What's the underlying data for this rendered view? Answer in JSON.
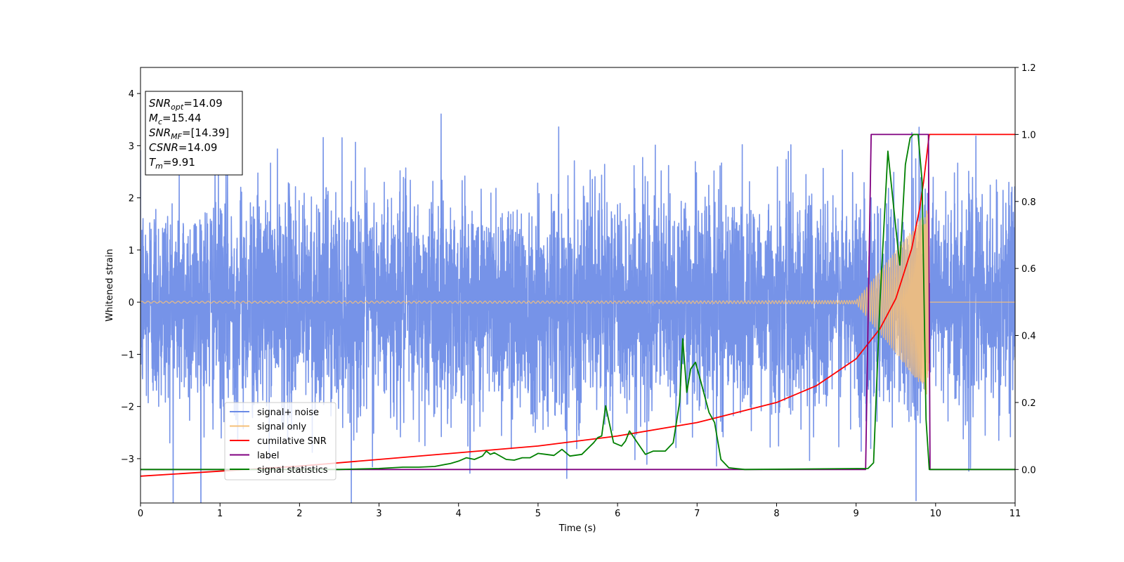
{
  "chart_data": {
    "type": "line",
    "title": "",
    "xlabel": "Time (s)",
    "ylabel": "Whitened strain",
    "xlim": [
      0,
      11
    ],
    "ylim_left": [
      -3.85,
      4.5
    ],
    "ylim_right": [
      -0.1,
      1.2
    ],
    "x_ticks": [
      "0",
      "1",
      "2",
      "3",
      "4",
      "5",
      "6",
      "7",
      "8",
      "9",
      "10",
      "11"
    ],
    "y_ticks_left": [
      "−3",
      "−2",
      "−1",
      "0",
      "1",
      "2",
      "3",
      "4"
    ],
    "y_ticks_right": [
      "0.0",
      "0.2",
      "0.4",
      "0.6",
      "0.8",
      "1.0",
      "1.2"
    ],
    "grid": false,
    "legend_position": "lower-left",
    "info_box": [
      {
        "base": "SNR",
        "sub": "opt",
        "value": "=14.09"
      },
      {
        "base": "M",
        "sub": "c",
        "value": "=15.44"
      },
      {
        "base": "SNR",
        "sub": "MF",
        "value": "=[14.39]"
      },
      {
        "base": "CSNR",
        "sub": "",
        "value": "=14.09"
      },
      {
        "base": "T",
        "sub": "m",
        "value": "=9.91"
      }
    ],
    "series": [
      {
        "name": "signal+ noise",
        "color": "#6a8ae6",
        "axis": "left",
        "description_values": {
          "std": 1.0,
          "t_range": [
            0,
            11
          ]
        }
      },
      {
        "name": "signal only",
        "color": "#f5c07a",
        "axis": "left",
        "chirp": {
          "t_start": 0,
          "t_merge": 9.91,
          "amp_start": 0.03,
          "amp_merge": 2.3,
          "ringdown_end": 9.92
        }
      },
      {
        "name": "cumilative SNR",
        "color": "#ff0000",
        "axis": "right",
        "points": [
          [
            0,
            -0.02
          ],
          [
            1,
            -0.005
          ],
          [
            2,
            0.01
          ],
          [
            3,
            0.03
          ],
          [
            4,
            0.05
          ],
          [
            5,
            0.07
          ],
          [
            6,
            0.1
          ],
          [
            7,
            0.14
          ],
          [
            8,
            0.2
          ],
          [
            8.5,
            0.25
          ],
          [
            9,
            0.33
          ],
          [
            9.3,
            0.42
          ],
          [
            9.5,
            0.51
          ],
          [
            9.7,
            0.66
          ],
          [
            9.8,
            0.78
          ],
          [
            9.85,
            0.86
          ],
          [
            9.9,
            0.96
          ],
          [
            9.92,
            1.0
          ],
          [
            11,
            1.0
          ]
        ]
      },
      {
        "name": "label",
        "color": "#800080",
        "axis": "right",
        "points": [
          [
            0,
            0.0
          ],
          [
            9.12,
            0.0
          ],
          [
            9.19,
            1.0
          ],
          [
            9.91,
            1.0
          ],
          [
            9.93,
            0.0
          ],
          [
            11,
            0.0
          ]
        ]
      },
      {
        "name": "signal statistics",
        "color": "#008000",
        "axis": "right",
        "points": [
          [
            0,
            0.0
          ],
          [
            2.5,
            0.0
          ],
          [
            3.0,
            0.003
          ],
          [
            3.3,
            0.007
          ],
          [
            3.5,
            0.007
          ],
          [
            3.7,
            0.009
          ],
          [
            3.9,
            0.018
          ],
          [
            4.0,
            0.025
          ],
          [
            4.1,
            0.035
          ],
          [
            4.2,
            0.03
          ],
          [
            4.3,
            0.04
          ],
          [
            4.35,
            0.055
          ],
          [
            4.4,
            0.045
          ],
          [
            4.45,
            0.05
          ],
          [
            4.6,
            0.03
          ],
          [
            4.7,
            0.028
          ],
          [
            4.8,
            0.035
          ],
          [
            4.9,
            0.035
          ],
          [
            5.0,
            0.048
          ],
          [
            5.1,
            0.045
          ],
          [
            5.2,
            0.042
          ],
          [
            5.3,
            0.06
          ],
          [
            5.4,
            0.04
          ],
          [
            5.55,
            0.045
          ],
          [
            5.7,
            0.08
          ],
          [
            5.75,
            0.095
          ],
          [
            5.8,
            0.1
          ],
          [
            5.85,
            0.19
          ],
          [
            5.95,
            0.08
          ],
          [
            6.05,
            0.07
          ],
          [
            6.1,
            0.085
          ],
          [
            6.15,
            0.115
          ],
          [
            6.25,
            0.08
          ],
          [
            6.35,
            0.045
          ],
          [
            6.45,
            0.055
          ],
          [
            6.6,
            0.055
          ],
          [
            6.7,
            0.08
          ],
          [
            6.78,
            0.2
          ],
          [
            6.82,
            0.39
          ],
          [
            6.87,
            0.23
          ],
          [
            6.92,
            0.3
          ],
          [
            6.98,
            0.32
          ],
          [
            7.05,
            0.26
          ],
          [
            7.15,
            0.17
          ],
          [
            7.22,
            0.14
          ],
          [
            7.3,
            0.03
          ],
          [
            7.4,
            0.005
          ],
          [
            7.6,
            0.0
          ],
          [
            9.15,
            0.003
          ],
          [
            9.22,
            0.02
          ],
          [
            9.3,
            0.5
          ],
          [
            9.4,
            0.95
          ],
          [
            9.5,
            0.72
          ],
          [
            9.55,
            0.61
          ],
          [
            9.62,
            0.91
          ],
          [
            9.68,
            0.99
          ],
          [
            9.72,
            1.0
          ],
          [
            9.78,
            1.0
          ],
          [
            9.83,
            0.86
          ],
          [
            9.88,
            0.15
          ],
          [
            9.92,
            0.0
          ],
          [
            11,
            0.0
          ]
        ]
      }
    ]
  }
}
